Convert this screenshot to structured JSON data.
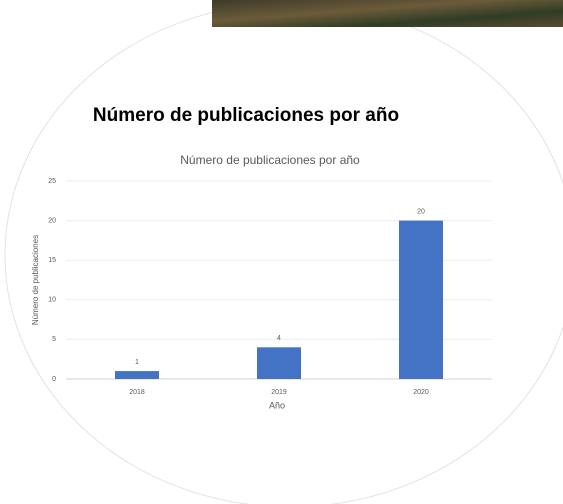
{
  "heading": "Número de publicaciones por año",
  "chart_data": {
    "type": "bar",
    "title": "Número de publicaciones por año",
    "x_label": "Año",
    "y_label": "Número de publicaciones",
    "categories": [
      "2018",
      "2019",
      "2020"
    ],
    "values": [
      1,
      4,
      20
    ],
    "color": "#4472c4",
    "ylim": [
      0,
      25
    ],
    "yticks": [
      0,
      5,
      10,
      15,
      20,
      25
    ],
    "grid": true
  }
}
